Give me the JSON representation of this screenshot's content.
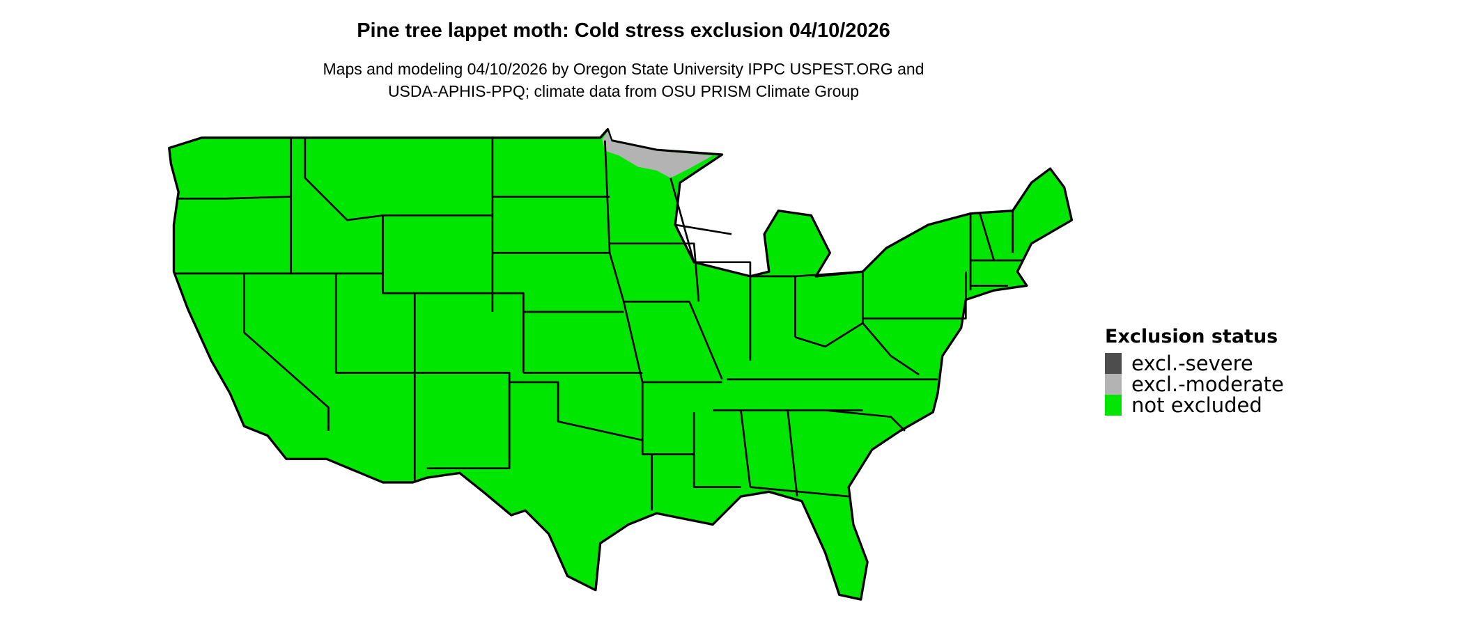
{
  "title": "Pine tree lappet moth: Cold stress exclusion 04/10/2026",
  "subtitle_lines": [
    "Maps and modeling 04/10/2026 by Oregon State University IPPC USPEST.ORG and",
    "USDA-APHIS-PPQ; climate data from OSU PRISM Climate Group"
  ],
  "legend": {
    "title": "Exclusion status",
    "items": [
      {
        "label": "excl.-severe",
        "color": "#4d4d4d"
      },
      {
        "label": "excl.-moderate",
        "color": "#b3b3b3"
      },
      {
        "label": "not excluded",
        "color": "#00e600"
      }
    ]
  },
  "map": {
    "region": "Contiguous United States",
    "dominant_status": "not excluded",
    "moderate_exclusion_area": "northern Minnesota"
  }
}
